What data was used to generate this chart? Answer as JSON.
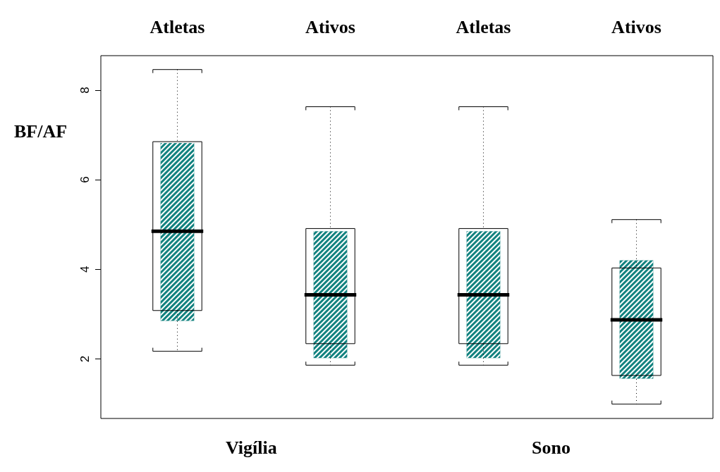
{
  "chart_data": {
    "type": "box",
    "categories": [
      "Atletas",
      "Ativos",
      "Atletas",
      "Ativos"
    ],
    "ylabel": "BF/AF",
    "annotations": [
      "Vigília",
      "Sono"
    ],
    "ylim": [
      0.67,
      8.77
    ],
    "yticks": [
      2,
      4,
      6,
      8
    ],
    "series": [
      {
        "type": "bar",
        "color": "#12827f",
        "base": [
          2.85,
          2.02,
          2.02,
          1.56
        ],
        "values": [
          3.97,
          2.83,
          2.83,
          2.64
        ]
      },
      {
        "color": "#000000",
        "boxes": [
          {
            "low": 2.17,
            "q1": 3.08,
            "median": 4.85,
            "q3": 6.85,
            "high": 8.46
          },
          {
            "low": 1.86,
            "q1": 2.34,
            "median": 3.43,
            "q3": 4.91,
            "high": 7.63
          },
          {
            "low": 1.86,
            "q1": 2.34,
            "median": 3.43,
            "q3": 4.91,
            "high": 7.63
          },
          {
            "low": 0.99,
            "q1": 1.63,
            "median": 2.87,
            "q3": 4.03,
            "high": 5.11
          }
        ]
      }
    ]
  }
}
